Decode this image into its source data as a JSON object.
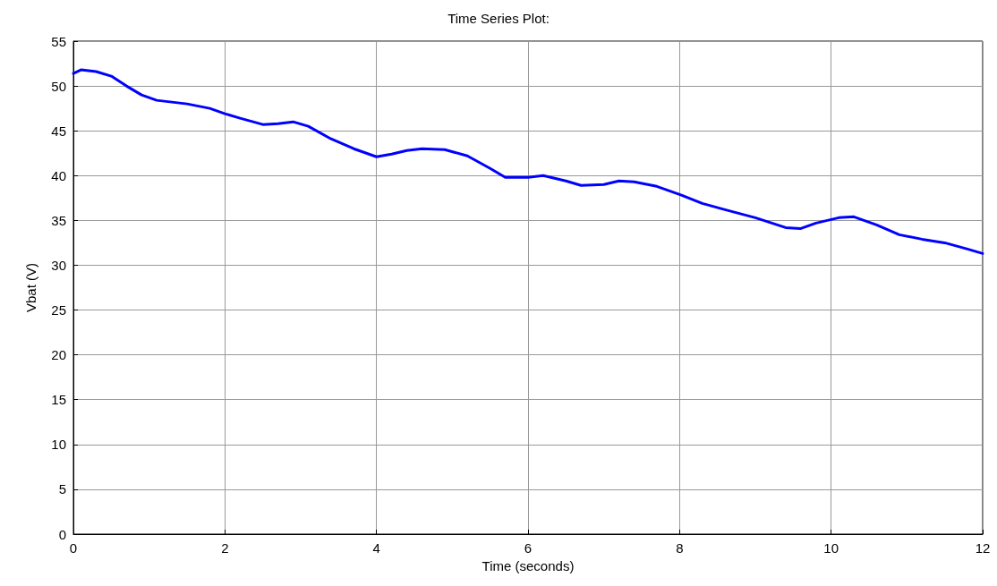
{
  "chart_data": {
    "type": "line",
    "title": "Time Series Plot:",
    "xlabel": "Time (seconds)",
    "ylabel": "Vbat (V)",
    "x": [
      0,
      0.1,
      0.3,
      0.5,
      0.7,
      0.9,
      1.1,
      1.3,
      1.5,
      1.8,
      2.0,
      2.2,
      2.5,
      2.7,
      2.9,
      3.1,
      3.4,
      3.7,
      4.0,
      4.2,
      4.4,
      4.6,
      4.9,
      5.2,
      5.5,
      5.7,
      6.0,
      6.2,
      6.5,
      6.7,
      7.0,
      7.2,
      7.4,
      7.7,
      8.0,
      8.3,
      8.6,
      9.0,
      9.4,
      9.6,
      9.8,
      10.1,
      10.3,
      10.6,
      10.9,
      11.2,
      11.5,
      11.8,
      12
    ],
    "series": [
      {
        "color": "#0000ff",
        "values": [
          51.4,
          51.8,
          51.6,
          51.1,
          50.0,
          49.0,
          48.4,
          48.2,
          48.0,
          47.5,
          46.9,
          46.4,
          45.7,
          45.8,
          46.0,
          45.5,
          44.1,
          43.0,
          42.1,
          42.4,
          42.8,
          43.0,
          42.9,
          42.2,
          40.8,
          39.8,
          39.8,
          40.0,
          39.4,
          38.9,
          39.0,
          39.4,
          39.3,
          38.8,
          37.9,
          36.9,
          36.2,
          35.3,
          34.2,
          34.1,
          34.7,
          35.3,
          35.4,
          34.5,
          33.4,
          32.9,
          32.5,
          31.8,
          31.3
        ]
      }
    ],
    "xlim": [
      0,
      12
    ],
    "xticks": [
      0,
      2,
      4,
      6,
      8,
      10,
      12
    ],
    "ylim": [
      0,
      55
    ],
    "yticks": [
      0,
      5,
      10,
      15,
      20,
      25,
      30,
      35,
      40,
      45,
      50,
      55
    ],
    "grid": true,
    "marker": "none",
    "line_style": "solid"
  }
}
